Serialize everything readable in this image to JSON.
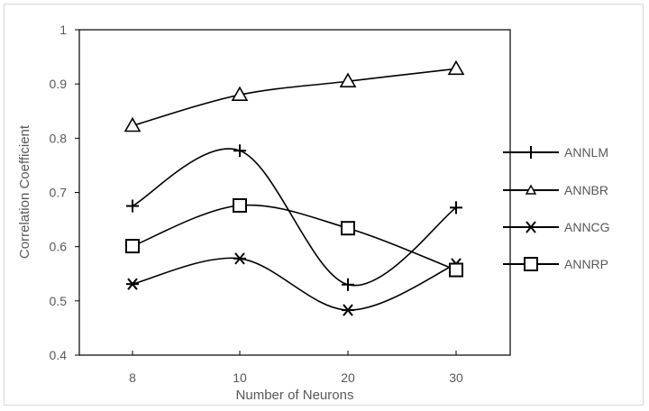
{
  "chart_data": {
    "type": "line",
    "categories": [
      "8",
      "10",
      "20",
      "30"
    ],
    "xlabel": "Number of Neurons",
    "ylabel": "Correlation Coefficient",
    "ylim": [
      0.4,
      1.0
    ],
    "yticks": [
      "0.4",
      "0.5",
      "0.6",
      "0.7",
      "0.8",
      "0.9",
      "1"
    ],
    "grid": false,
    "legend_position": "right",
    "series": [
      {
        "name": "ANNLM",
        "marker": "plus",
        "values": [
          0.675,
          0.777,
          0.53,
          0.672
        ]
      },
      {
        "name": "ANNBR",
        "marker": "triangle",
        "values": [
          0.823,
          0.88,
          0.905,
          0.928
        ]
      },
      {
        "name": "ANNCG",
        "marker": "star",
        "values": [
          0.531,
          0.578,
          0.483,
          0.568
        ]
      },
      {
        "name": "ANNRP",
        "marker": "square",
        "values": [
          0.601,
          0.676,
          0.634,
          0.557
        ]
      }
    ],
    "colors": {
      "line": "#000000",
      "axis_text": "#595959",
      "frame": "#d9d9d9"
    }
  }
}
